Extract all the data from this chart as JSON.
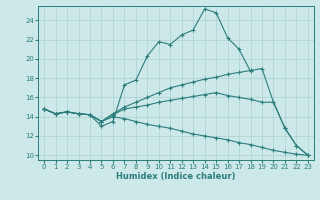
{
  "xlabel": "Humidex (Indice chaleur)",
  "bg_color": "#cce8e8",
  "grid_color": "#b0d4d4",
  "line_color": "#2d7d7d",
  "xlim": [
    -0.5,
    23.5
  ],
  "ylim": [
    9.5,
    25.5
  ],
  "xticks": [
    0,
    1,
    2,
    3,
    4,
    5,
    6,
    7,
    8,
    9,
    10,
    11,
    12,
    13,
    14,
    15,
    16,
    17,
    18,
    19,
    20,
    21,
    22,
    23
  ],
  "yticks": [
    10,
    12,
    14,
    16,
    18,
    20,
    22,
    24
  ],
  "s1x": [
    0,
    1,
    2,
    3,
    4,
    5,
    6,
    7,
    8,
    9,
    10,
    11,
    12,
    13,
    14,
    15,
    16,
    17,
    18
  ],
  "s1y": [
    14.8,
    14.3,
    14.5,
    14.3,
    14.2,
    13.0,
    13.5,
    17.3,
    17.8,
    20.3,
    21.8,
    21.5,
    22.5,
    23.0,
    25.2,
    24.8,
    22.2,
    21.0,
    18.7
  ],
  "s2x": [
    0,
    1,
    2,
    3,
    4,
    5,
    6,
    7,
    8,
    9,
    10,
    11,
    12,
    13,
    14,
    15,
    16,
    17,
    18,
    19,
    20,
    21,
    22,
    23
  ],
  "s2y": [
    14.8,
    14.3,
    14.5,
    14.3,
    14.2,
    13.5,
    14.3,
    15.0,
    15.5,
    16.0,
    16.5,
    17.0,
    17.3,
    17.6,
    17.9,
    18.1,
    18.4,
    18.6,
    18.8,
    19.0,
    15.5,
    12.8,
    11.0,
    10.0
  ],
  "s3x": [
    0,
    1,
    2,
    3,
    4,
    5,
    6,
    7,
    8,
    9,
    10,
    11,
    12,
    13,
    14,
    15,
    16,
    17,
    18,
    19,
    20,
    21,
    22,
    23
  ],
  "s3y": [
    14.8,
    14.3,
    14.5,
    14.3,
    14.2,
    13.5,
    14.2,
    14.8,
    15.0,
    15.2,
    15.5,
    15.7,
    15.9,
    16.1,
    16.3,
    16.5,
    16.2,
    16.0,
    15.8,
    15.5,
    15.5,
    12.8,
    11.0,
    10.0
  ],
  "s4x": [
    0,
    1,
    2,
    3,
    4,
    5,
    6,
    7,
    8,
    9,
    10,
    11,
    12,
    13,
    14,
    15,
    16,
    17,
    18,
    19,
    20,
    21,
    22,
    23
  ],
  "s4y": [
    14.8,
    14.3,
    14.5,
    14.3,
    14.2,
    13.5,
    14.0,
    13.8,
    13.5,
    13.2,
    13.0,
    12.8,
    12.5,
    12.2,
    12.0,
    11.8,
    11.6,
    11.3,
    11.1,
    10.8,
    10.5,
    10.3,
    10.1,
    10.0
  ]
}
